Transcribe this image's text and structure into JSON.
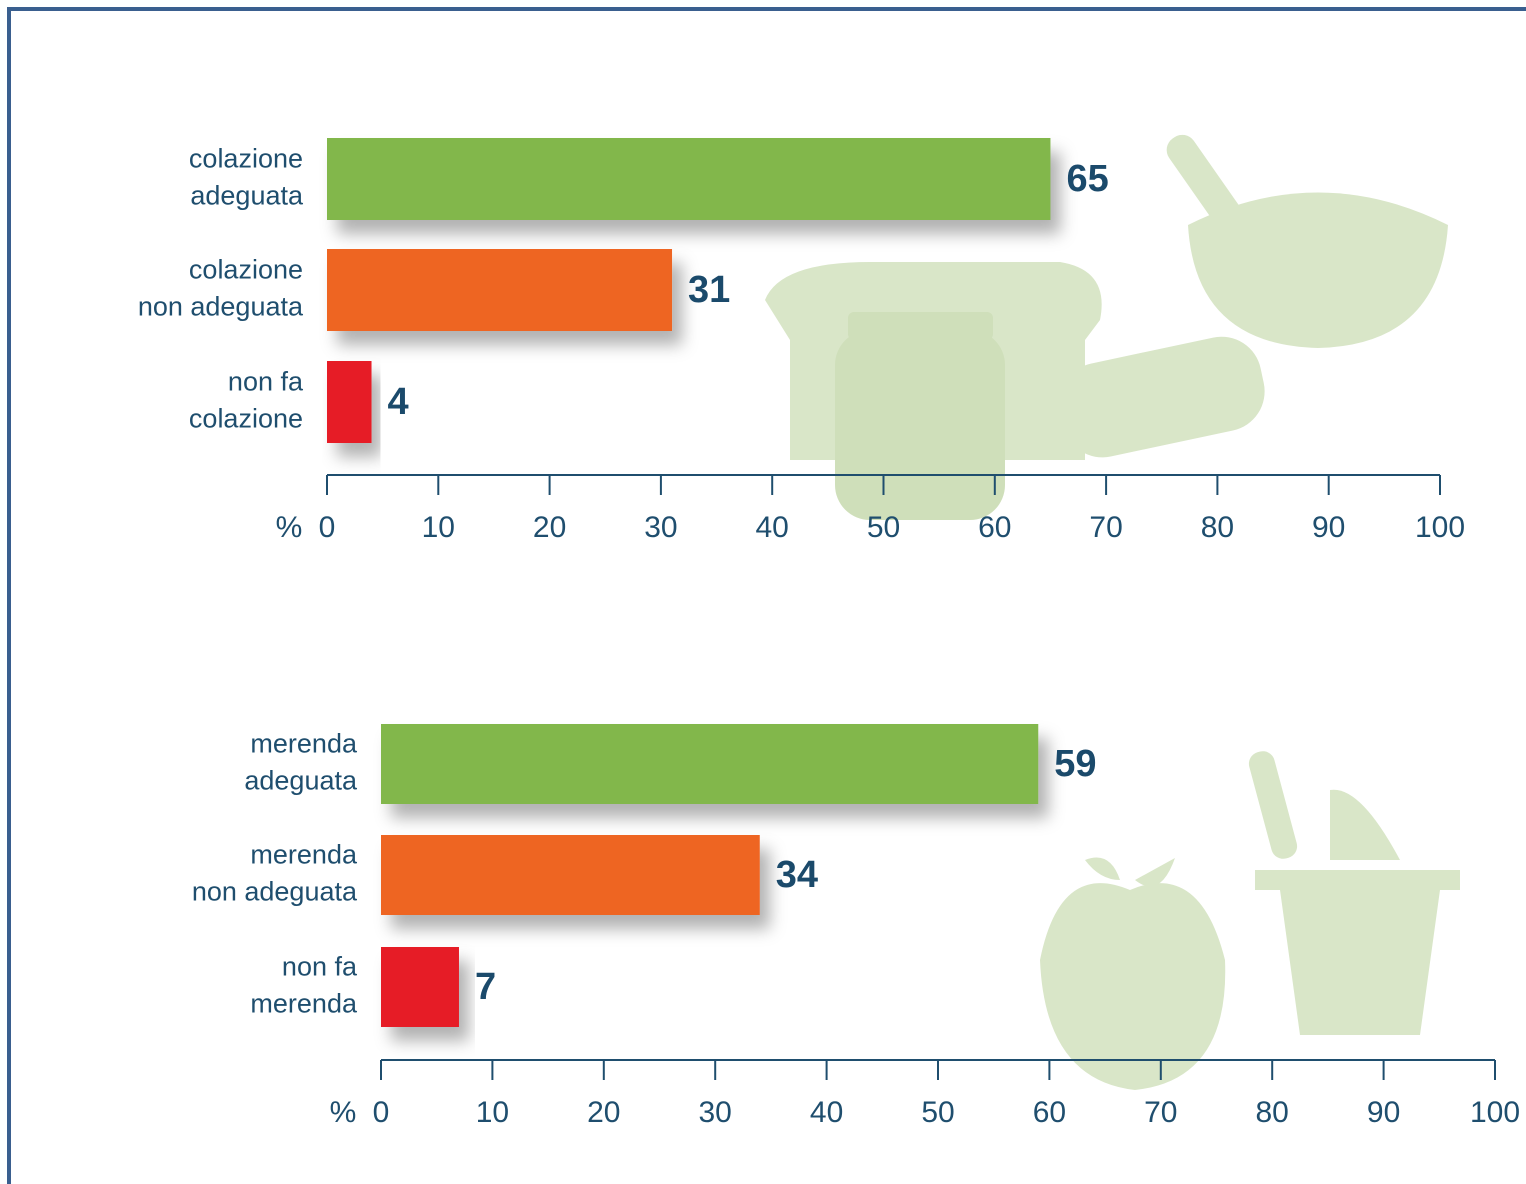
{
  "chart_data": [
    {
      "type": "bar",
      "orientation": "horizontal",
      "categories": [
        [
          "colazione",
          "adeguata"
        ],
        [
          "colazione",
          "non adeguata"
        ],
        [
          "non fa",
          "colazione"
        ]
      ],
      "values": [
        65,
        31,
        4
      ],
      "colors": [
        "#82b74b",
        "#ee6524",
        "#e61e28"
      ],
      "xlabel": "%",
      "xlim": [
        0,
        100
      ],
      "xticks": [
        0,
        10,
        20,
        30,
        40,
        50,
        60,
        70,
        80,
        90,
        100
      ]
    },
    {
      "type": "bar",
      "orientation": "horizontal",
      "categories": [
        [
          "merenda",
          "adeguata"
        ],
        [
          "merenda",
          "non adeguata"
        ],
        [
          "non fa",
          "merenda"
        ]
      ],
      "values": [
        59,
        34,
        7
      ],
      "colors": [
        "#82b74b",
        "#ee6524",
        "#e61e28"
      ],
      "xlabel": "%",
      "xlim": [
        0,
        100
      ],
      "xticks": [
        0,
        10,
        20,
        30,
        40,
        50,
        60,
        70,
        80,
        90,
        100
      ]
    }
  ]
}
